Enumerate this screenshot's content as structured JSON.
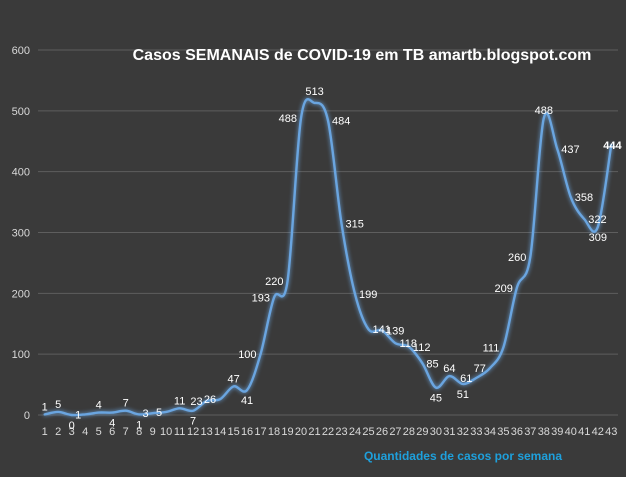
{
  "chart_data": {
    "type": "line",
    "title": "Casos SEMANAIS de COVID-19 em TB amartb.blogspot.com",
    "xlabel": "Quantidades de casos por semana",
    "ylabel": "",
    "ylim": [
      0,
      600
    ],
    "yticks": [
      0,
      100,
      200,
      300,
      400,
      500,
      600
    ],
    "grid": true,
    "legend": "none",
    "line_color": "#6aa5e0",
    "categories": [
      "1",
      "2",
      "3",
      "4",
      "5",
      "6",
      "7",
      "8",
      "9",
      "10",
      "11",
      "12",
      "13",
      "14",
      "15",
      "16",
      "17",
      "18",
      "19",
      "20",
      "21",
      "22",
      "23",
      "24",
      "25",
      "26",
      "27",
      "28",
      "29",
      "30",
      "31",
      "32",
      "33",
      "34",
      "35",
      "36",
      "37",
      "38",
      "39",
      "40",
      "41",
      "42",
      "43"
    ],
    "series": [
      {
        "values": [
          1,
          5,
          0,
          1,
          4,
          4,
          7,
          1,
          3,
          5,
          11,
          7,
          23,
          26,
          47,
          41,
          100,
          193,
          220,
          488,
          513,
          484,
          315,
          199,
          141,
          139,
          118,
          112,
          85,
          45,
          64,
          51,
          61,
          77,
          111,
          209,
          260,
          488,
          437,
          358,
          322,
          309,
          444
        ]
      }
    ]
  }
}
